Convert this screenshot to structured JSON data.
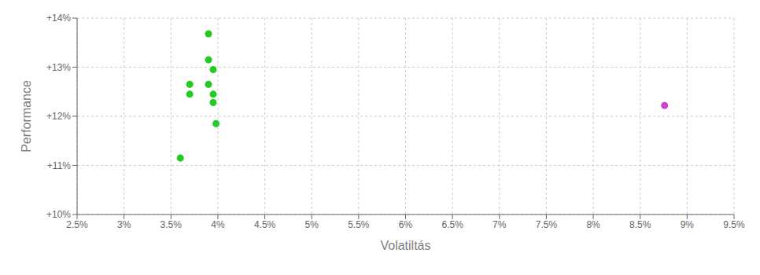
{
  "chart_data": {
    "type": "scatter",
    "xlabel": "Volatiltás",
    "ylabel": "Performance",
    "xlim": [
      0.025,
      0.095
    ],
    "ylim": [
      0.1,
      0.14
    ],
    "xticks": [
      {
        "value": 0.025,
        "label": "2.5%"
      },
      {
        "value": 0.03,
        "label": "3%"
      },
      {
        "value": 0.035,
        "label": "3.5%"
      },
      {
        "value": 0.04,
        "label": "4%"
      },
      {
        "value": 0.045,
        "label": "4.5%"
      },
      {
        "value": 0.05,
        "label": "5%"
      },
      {
        "value": 0.055,
        "label": "5.5%"
      },
      {
        "value": 0.06,
        "label": "6%"
      },
      {
        "value": 0.065,
        "label": "6.5%"
      },
      {
        "value": 0.07,
        "label": "7%"
      },
      {
        "value": 0.075,
        "label": "7.5%"
      },
      {
        "value": 0.08,
        "label": "8%"
      },
      {
        "value": 0.085,
        "label": "8.5%"
      },
      {
        "value": 0.09,
        "label": "9%"
      },
      {
        "value": 0.095,
        "label": "9.5%"
      }
    ],
    "yticks": [
      {
        "value": 0.1,
        "label": "+10%"
      },
      {
        "value": 0.11,
        "label": "+11%"
      },
      {
        "value": 0.12,
        "label": "+12%"
      },
      {
        "value": 0.13,
        "label": "+13%"
      },
      {
        "value": 0.14,
        "label": "+14%"
      }
    ],
    "grid": true,
    "series": [
      {
        "color": "#22cc22",
        "x": [
          0.039,
          0.039,
          0.0395,
          0.037,
          0.039,
          0.037,
          0.0395,
          0.0395,
          0.0398,
          0.036
        ],
        "values": [
          0.1368,
          0.1315,
          0.1295,
          0.1265,
          0.1265,
          0.1245,
          0.1245,
          0.1228,
          0.1185,
          0.1115
        ]
      },
      {
        "color": "#cc44cc",
        "x": [
          0.0876
        ],
        "values": [
          0.1222
        ]
      }
    ]
  }
}
